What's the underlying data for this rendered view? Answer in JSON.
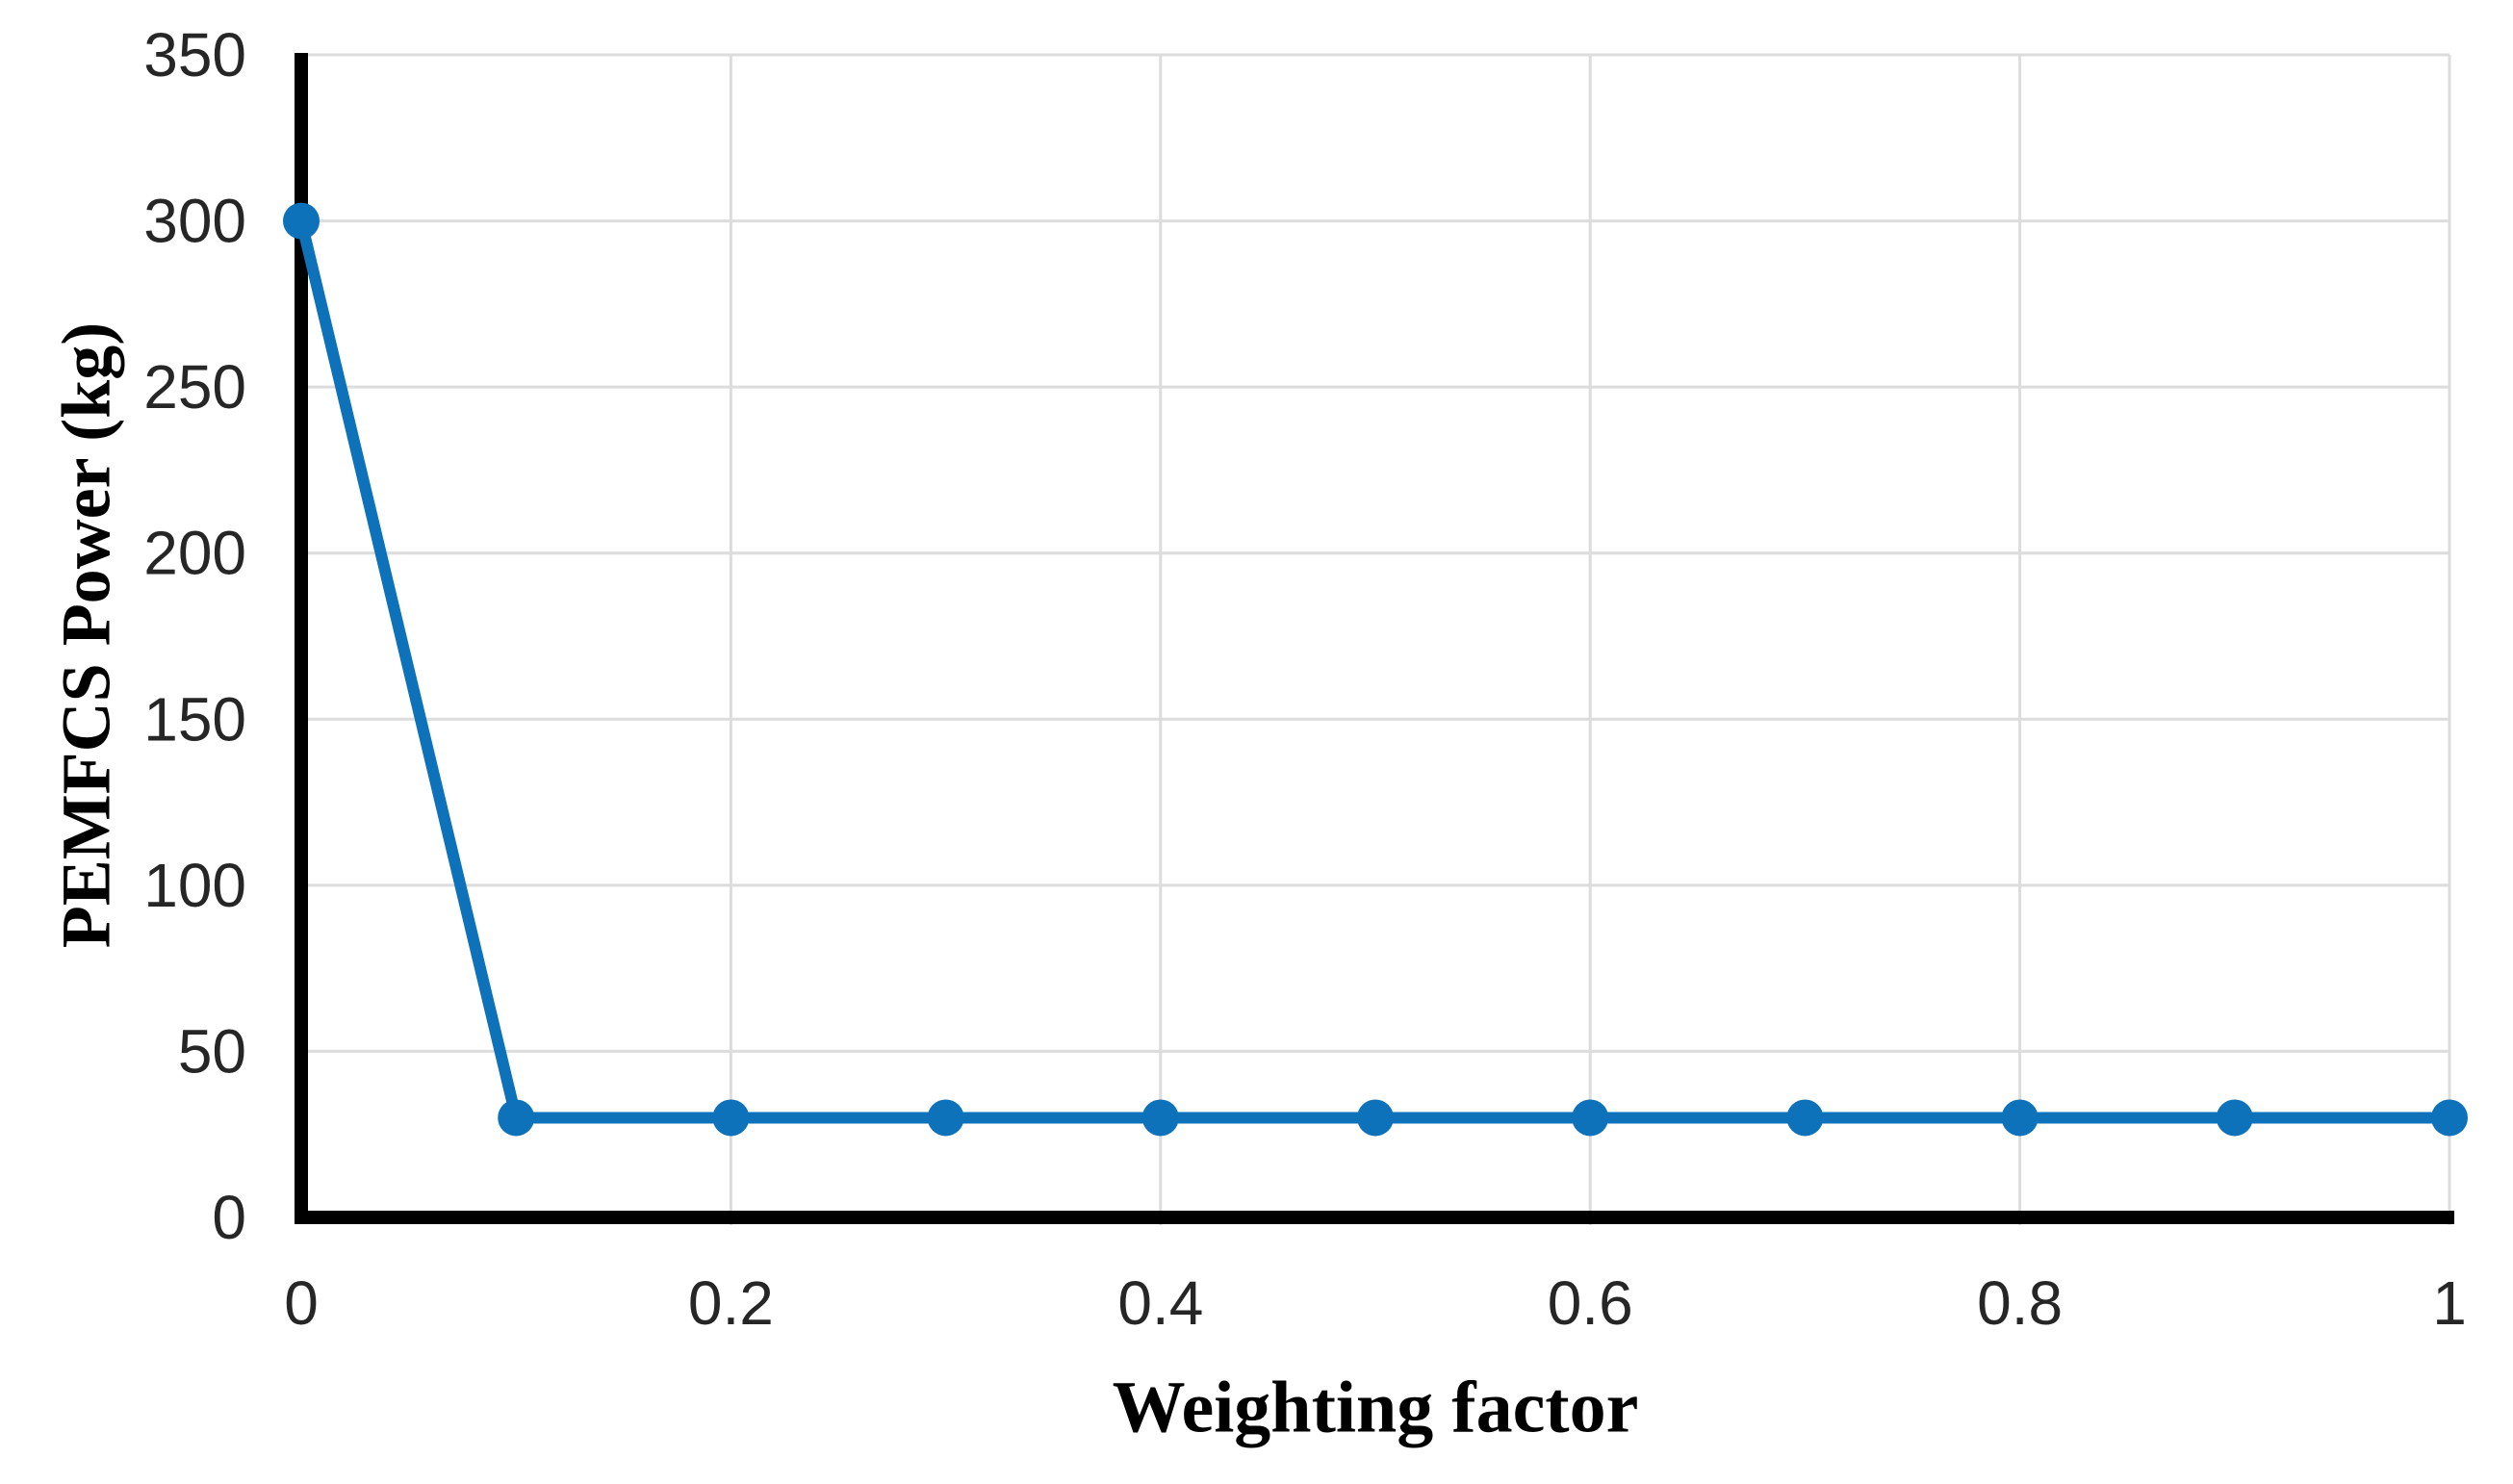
{
  "chart_data": {
    "type": "line",
    "title": "",
    "xlabel": "Weighting factor",
    "ylabel": "PEMFCS Power (kg)",
    "x": [
      0,
      0.1,
      0.2,
      0.3,
      0.4,
      0.5,
      0.6,
      0.7,
      0.8,
      0.9,
      1
    ],
    "series": [
      {
        "name": "PEMFCS Power",
        "values": [
          300,
          30,
          30,
          30,
          30,
          30,
          30,
          30,
          30,
          30,
          30
        ]
      }
    ],
    "xlim": [
      0,
      1
    ],
    "ylim": [
      0,
      350
    ],
    "x_ticks": {
      "values": [
        0,
        0.2,
        0.4,
        0.6,
        0.8,
        1
      ],
      "labels": [
        "0",
        "0.2",
        "0.4",
        "0.6",
        "0.8",
        "1"
      ]
    },
    "y_ticks": {
      "values": [
        0,
        50,
        100,
        150,
        200,
        250,
        300,
        350
      ],
      "labels": [
        "0",
        "50",
        "100",
        "150",
        "200",
        "250",
        "300",
        "350"
      ]
    },
    "grid": {
      "horizontal": true,
      "vertical": true
    },
    "legend_position": "none",
    "marker": "circle",
    "colors": {
      "line": "#0d72b9",
      "marker": "#0d72b9",
      "gridline": "#dcdcdc",
      "axis": "#000000",
      "tick_label": "#262626",
      "axis_title": "#000000",
      "background": "#ffffff"
    }
  }
}
